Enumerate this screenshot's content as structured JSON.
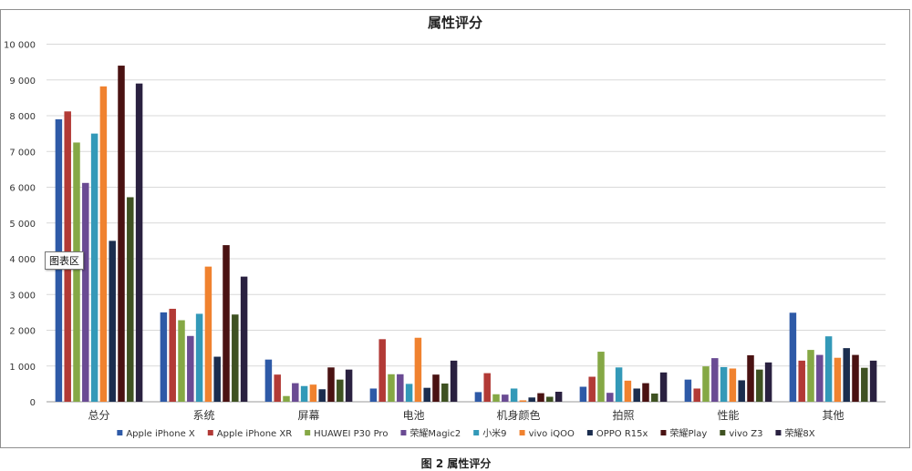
{
  "chart_data": {
    "type": "bar",
    "title": "属性评分",
    "categories": [
      "总分",
      "系统",
      "屏幕",
      "电池",
      "机身颜色",
      "拍照",
      "性能",
      "其他"
    ],
    "ylim": [
      0,
      10000
    ],
    "yticks": [
      0,
      1000,
      2000,
      3000,
      4000,
      5000,
      6000,
      7000,
      8000,
      9000,
      10000
    ],
    "ytick_labels": [
      "0",
      "1 000",
      "2 000",
      "3 000",
      "4 000",
      "5 000",
      "6 000",
      "7 000",
      "8 000",
      "9 000",
      "10 000"
    ],
    "grid": true,
    "legend_position": "bottom",
    "series": [
      {
        "name": "Apple iPhone X",
        "color": "#2e5aa7",
        "values": [
          7900,
          2500,
          1180,
          370,
          270,
          420,
          620,
          2490
        ]
      },
      {
        "name": "Apple iPhone XR",
        "color": "#b23a36",
        "values": [
          8120,
          2600,
          760,
          1750,
          800,
          700,
          370,
          1150
        ]
      },
      {
        "name": "HUAWEI P30 Pro",
        "color": "#85a845",
        "values": [
          7250,
          2280,
          160,
          770,
          210,
          1400,
          990,
          1450
        ]
      },
      {
        "name": "荣耀Magic2",
        "color": "#6a4b93",
        "values": [
          6120,
          1840,
          520,
          770,
          200,
          250,
          1220,
          1310
        ]
      },
      {
        "name": "小米9",
        "color": "#3399b8",
        "values": [
          7500,
          2460,
          440,
          500,
          370,
          960,
          970,
          1830
        ]
      },
      {
        "name": "vivo iQOO",
        "color": "#f0822f",
        "values": [
          8820,
          3780,
          480,
          1790,
          40,
          590,
          930,
          1230
        ]
      },
      {
        "name": "OPPO R15x",
        "color": "#1b2d4e",
        "values": [
          4500,
          1260,
          350,
          390,
          120,
          370,
          600,
          1500
        ]
      },
      {
        "name": "荣耀Play",
        "color": "#4a1212",
        "values": [
          9400,
          4380,
          960,
          760,
          240,
          520,
          1300,
          1310
        ]
      },
      {
        "name": "vivo Z3",
        "color": "#3f5222",
        "values": [
          5720,
          2440,
          620,
          510,
          140,
          230,
          900,
          950
        ]
      },
      {
        "name": "荣耀8X",
        "color": "#2a2140",
        "values": [
          8900,
          3500,
          900,
          1150,
          280,
          820,
          1100,
          1150
        ]
      }
    ]
  },
  "tooltip": "图表区",
  "caption": "图 2   属性评分"
}
